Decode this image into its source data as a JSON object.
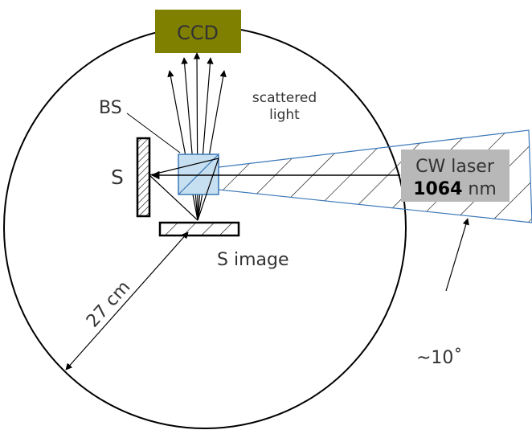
{
  "labels": {
    "ccd": "CCD",
    "bs": "BS",
    "scattered_line1": "scattered",
    "scattered_line2": "light",
    "sample": "S",
    "sample_image": "S image",
    "laser_name": "CW laser",
    "laser_wavelength_value": "1064",
    "laser_wavelength_unit": "nm",
    "radius": "27 cm",
    "angle": "~10˚"
  },
  "colors": {
    "ccd_fill": "#808000",
    "beamsplitter_fill": "#c6dff1",
    "beamsplitter_stroke": "#3b78b8",
    "laser_cone_stroke": "#3b78b8",
    "laser_label_bg": "#b8b8b8",
    "line": "#000000",
    "text": "#333333"
  }
}
